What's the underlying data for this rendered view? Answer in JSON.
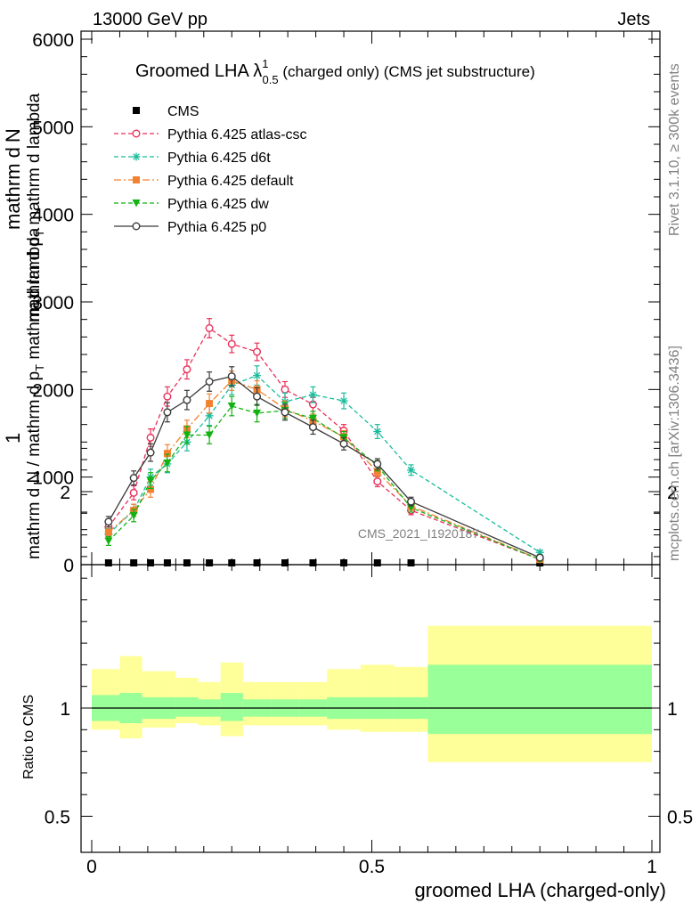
{
  "header": {
    "left": "13000 GeV pp",
    "right": "Jets"
  },
  "side_labels": {
    "rivet": "Rivet 3.1.10, ≥ 300k events",
    "mcplots": "mcplots.cern.ch [arXiv:1306.3436]"
  },
  "watermark": "CMS_2021_I1920187",
  "chart_data": [
    {
      "type": "line",
      "title": "Groomed LHA λ",
      "title_sup": "1",
      "title_sub": "0.5",
      "title_suffix": " (charged only) (CMS jet substructure)",
      "ylabel_top": "1",
      "ylabel_num": "mathrm d",
      "ylabel_num2": "N",
      "ylabel_den": "mathrm d N / mathrm d p",
      "ylabel_den_sub": "T",
      "ylabel_den_tail": " mathrm d lambda",
      "ylabel_mid": "mathrm d p",
      "ylabel_mid_sub": "T",
      "ylabel_mid_tail": " mathrm d lambda",
      "xlim": [
        0,
        1
      ],
      "ylim": [
        0,
        6000
      ],
      "yticks": [
        0,
        1000,
        2000,
        3000,
        4000,
        5000,
        6000
      ],
      "ytick_labels": [
        "0",
        "1000",
        "2000",
        "3000",
        "4000",
        "5000",
        "6000"
      ],
      "legend_position": "top-left",
      "x": [
        0.03,
        0.075,
        0.105,
        0.135,
        0.17,
        0.21,
        0.25,
        0.295,
        0.345,
        0.395,
        0.45,
        0.51,
        0.57,
        0.8
      ],
      "series": [
        {
          "name": "CMS",
          "color": "#000000",
          "marker": "filled-square",
          "line": "none",
          "values": [
            0,
            0,
            0,
            0,
            0,
            0,
            0,
            0,
            0,
            0,
            0,
            0,
            0,
            0
          ]
        },
        {
          "name": "Pythia 6.425 atlas-csc",
          "color": "#e8315a",
          "marker": "open-circle",
          "line": "dashed",
          "values": [
            430,
            820,
            1450,
            1920,
            2230,
            2700,
            2520,
            2430,
            2000,
            1830,
            1530,
            950,
            620,
            60
          ],
          "errors": [
            60,
            80,
            100,
            110,
            110,
            110,
            100,
            100,
            90,
            80,
            70,
            60,
            50,
            20
          ]
        },
        {
          "name": "Pythia 6.425 d6t",
          "color": "#1abc9c",
          "marker": "star",
          "line": "dashed",
          "values": [
            350,
            620,
            1000,
            1150,
            1400,
            1700,
            2050,
            2160,
            1860,
            1940,
            1870,
            1520,
            1080,
            140
          ],
          "errors": [
            60,
            70,
            90,
            100,
            100,
            110,
            110,
            110,
            100,
            90,
            90,
            80,
            60,
            20
          ]
        },
        {
          "name": "Pythia 6.425 default",
          "color": "#f28130",
          "marker": "filled-square",
          "line": "dashdot",
          "values": [
            370,
            620,
            860,
            1270,
            1550,
            1840,
            2100,
            2000,
            1780,
            1640,
            1460,
            1060,
            670,
            60
          ],
          "errors": [
            60,
            70,
            90,
            100,
            100,
            110,
            110,
            100,
            90,
            80,
            70,
            60,
            50,
            20
          ]
        },
        {
          "name": "Pythia 6.425 dw",
          "color": "#11b211",
          "marker": "filled-down-triangle",
          "line": "dashed",
          "values": [
            270,
            560,
            960,
            1160,
            1480,
            1480,
            1810,
            1730,
            1760,
            1670,
            1450,
            1130,
            650,
            60
          ],
          "errors": [
            50,
            70,
            90,
            100,
            100,
            100,
            110,
            100,
            90,
            80,
            70,
            60,
            50,
            20
          ]
        },
        {
          "name": "Pythia 6.425 p0",
          "color": "#3a3a3a",
          "marker": "open-circle",
          "line": "solid",
          "values": [
            490,
            990,
            1280,
            1740,
            1880,
            2090,
            2150,
            1920,
            1740,
            1570,
            1380,
            1150,
            720,
            80
          ],
          "errors": [
            60,
            80,
            100,
            110,
            110,
            110,
            110,
            100,
            90,
            80,
            70,
            60,
            50,
            20
          ]
        }
      ]
    },
    {
      "type": "area",
      "ylabel": "Ratio to CMS",
      "xlabel": "groomed LHA (charged-only)",
      "xlim": [
        0,
        1
      ],
      "ylim": [
        0.35,
        2.35
      ],
      "yticks": [
        0.5,
        1,
        2
      ],
      "ytick_labels": [
        "0.5",
        "1",
        "2"
      ],
      "xticks": [
        0,
        0.5,
        1
      ],
      "xtick_labels": [
        "0",
        "0.5",
        "1"
      ],
      "reference_line": 1,
      "bins": [
        [
          0,
          0.05
        ],
        [
          0.05,
          0.09
        ],
        [
          0.09,
          0.12
        ],
        [
          0.12,
          0.15
        ],
        [
          0.15,
          0.19
        ],
        [
          0.19,
          0.23
        ],
        [
          0.23,
          0.27
        ],
        [
          0.27,
          0.32
        ],
        [
          0.32,
          0.37
        ],
        [
          0.37,
          0.42
        ],
        [
          0.42,
          0.48
        ],
        [
          0.48,
          0.54
        ],
        [
          0.54,
          0.6
        ],
        [
          0.6,
          1.0
        ]
      ],
      "band_inner": {
        "color": "#99ff99",
        "low": [
          0.94,
          0.93,
          0.95,
          0.95,
          0.96,
          0.96,
          0.94,
          0.96,
          0.96,
          0.96,
          0.95,
          0.95,
          0.95,
          0.88
        ],
        "high": [
          1.06,
          1.07,
          1.05,
          1.05,
          1.05,
          1.04,
          1.07,
          1.04,
          1.04,
          1.04,
          1.05,
          1.05,
          1.05,
          1.2
        ]
      },
      "band_outer": {
        "color": "#ffff99",
        "low": [
          0.9,
          0.86,
          0.91,
          0.91,
          0.93,
          0.92,
          0.87,
          0.92,
          0.92,
          0.92,
          0.9,
          0.89,
          0.89,
          0.75
        ],
        "high": [
          1.18,
          1.24,
          1.17,
          1.17,
          1.14,
          1.12,
          1.21,
          1.12,
          1.12,
          1.12,
          1.18,
          1.2,
          1.19,
          1.38
        ]
      }
    }
  ]
}
